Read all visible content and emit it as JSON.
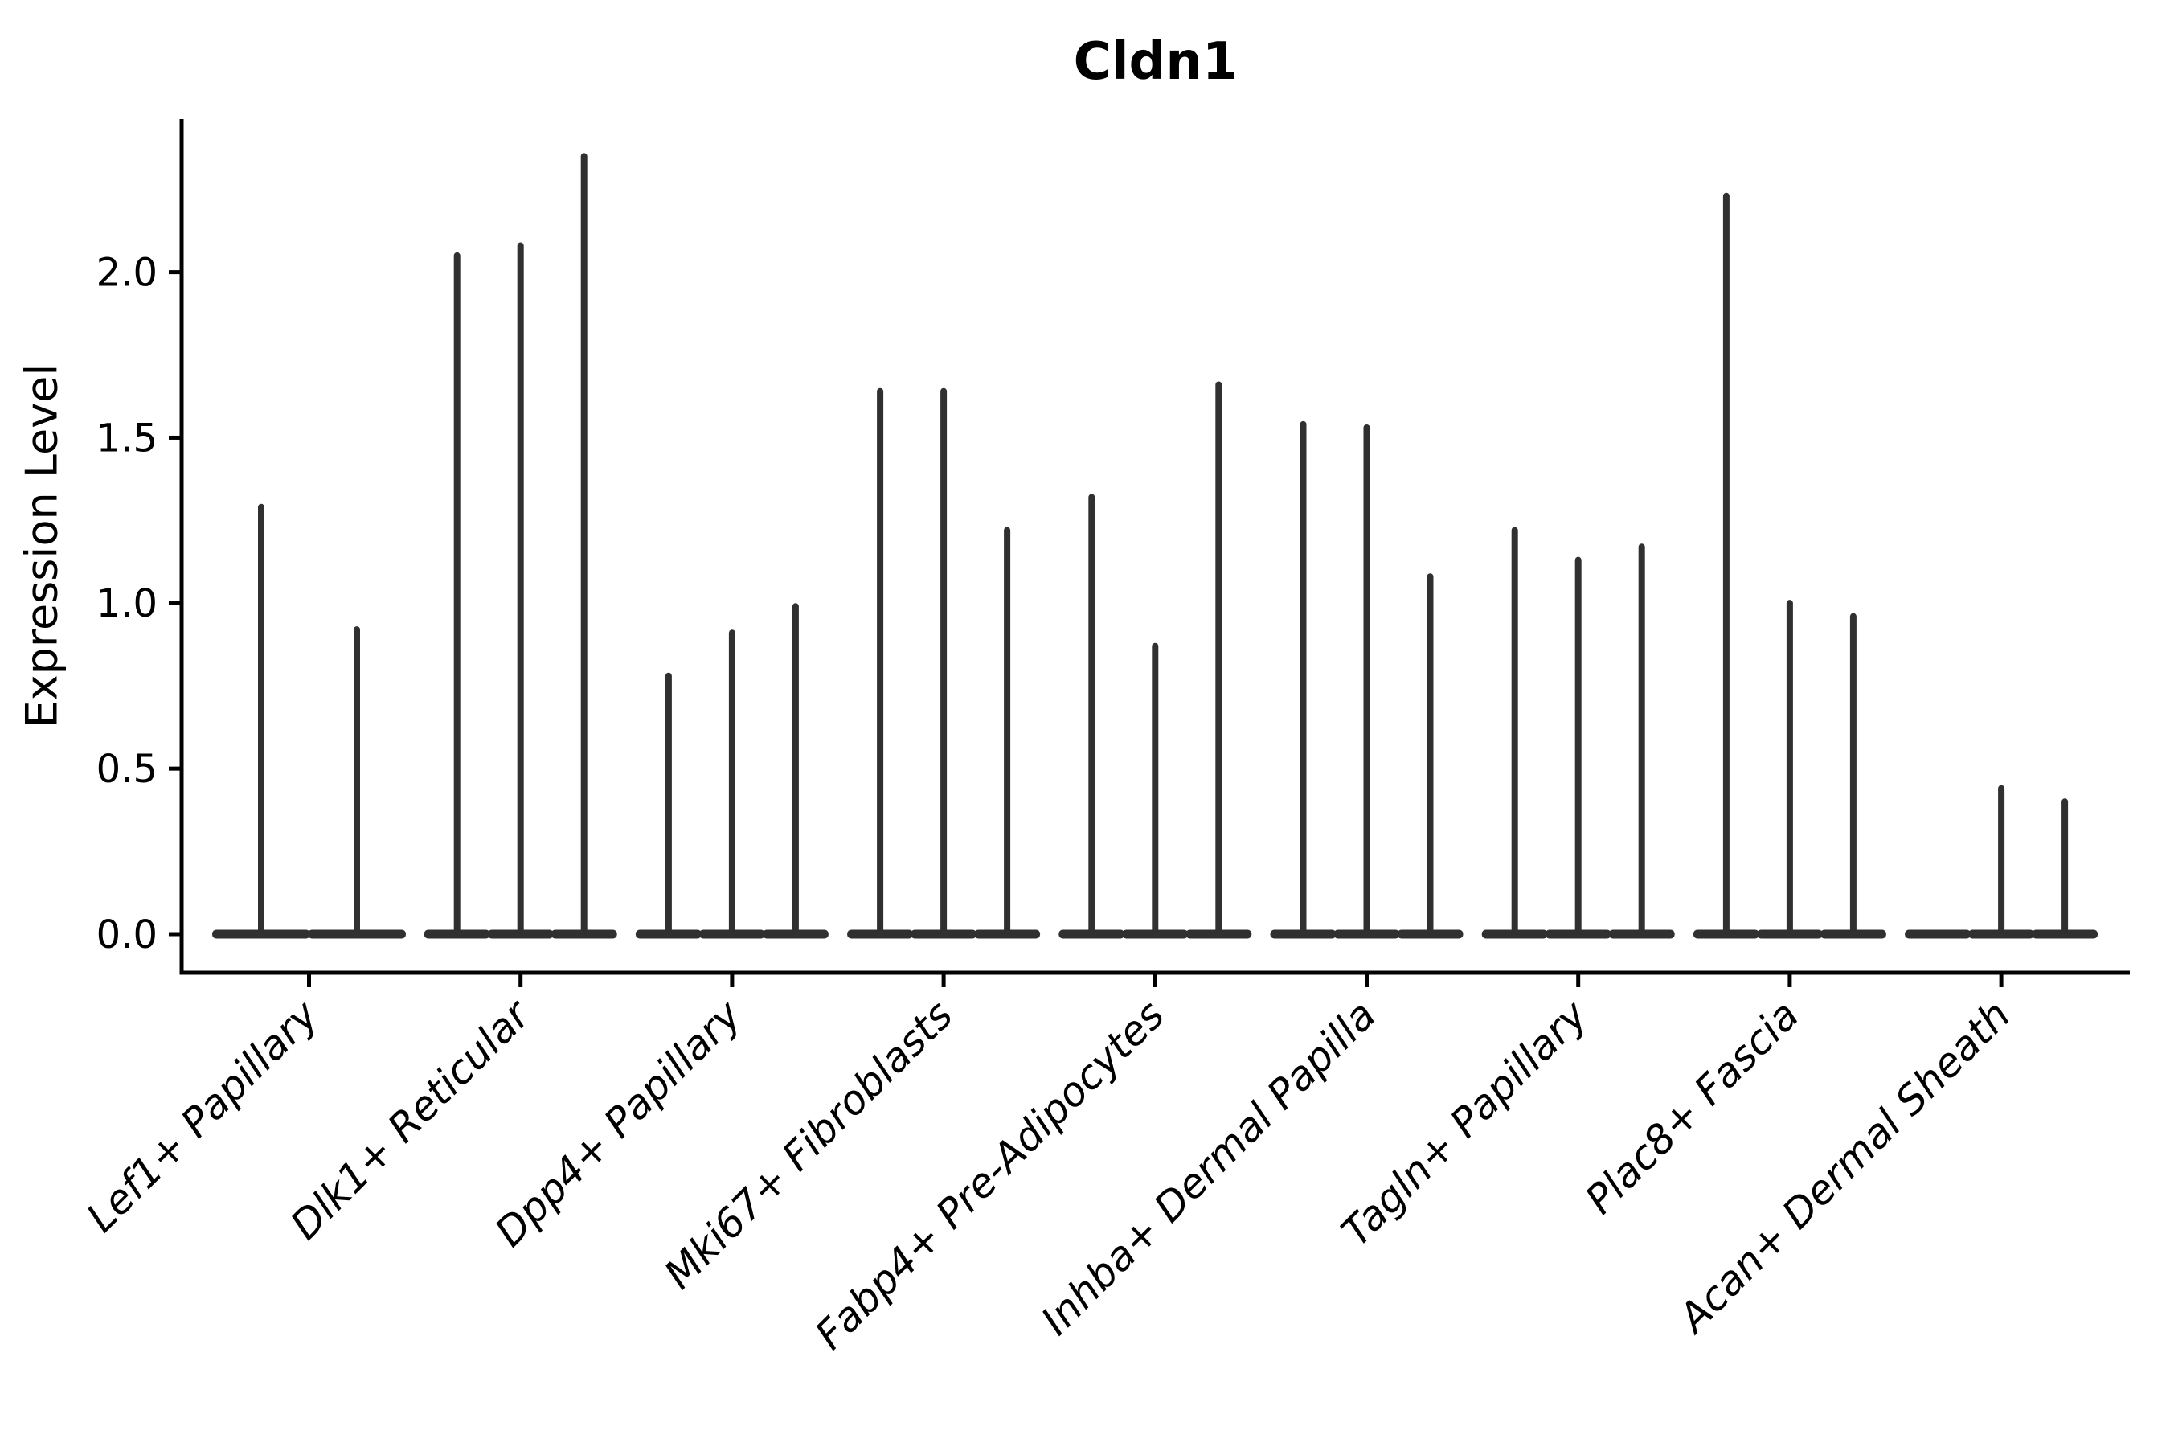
{
  "chart_data": {
    "type": "violin",
    "title": "Cldn1",
    "ylabel": "Expression Level",
    "xlabel": "",
    "y_tick_values": [
      0.0,
      0.5,
      1.0,
      1.5,
      2.0
    ],
    "y_tick_labels": [
      "0.0",
      "0.5",
      "1.0",
      "1.5",
      "2.0"
    ],
    "ylim": [
      -0.12,
      2.46
    ],
    "grid": false,
    "legend": false,
    "x_labels_rotation_deg": 45,
    "x_labels_italic": true,
    "groups": [
      {
        "category": "Lef1+ Papillary",
        "violin_max": [
          1.3,
          0.93
        ]
      },
      {
        "category": "Dlk1+ Reticular",
        "violin_max": [
          2.06,
          2.09,
          2.36
        ]
      },
      {
        "category": "Dpp4+ Papillary",
        "violin_max": [
          0.79,
          0.92,
          1.0
        ]
      },
      {
        "category": "Mki67+ Fibroblasts",
        "violin_max": [
          1.65,
          1.65,
          1.23
        ]
      },
      {
        "category": "Fabp4+ Pre-Adipocytes",
        "violin_max": [
          1.33,
          0.88,
          1.67
        ]
      },
      {
        "category": "Inhba+ Dermal Papilla",
        "violin_max": [
          1.55,
          1.54,
          1.09
        ]
      },
      {
        "category": "Tagln+ Papillary",
        "violin_max": [
          1.23,
          1.14,
          1.18
        ]
      },
      {
        "category": "Plac8+ Fascia",
        "violin_max": [
          2.24,
          1.01,
          0.97
        ]
      },
      {
        "category": "Acan+ Dermal Sheath",
        "violin_max": [
          0.0,
          0.45,
          0.41
        ]
      }
    ],
    "style": {
      "violin_color": "#303030",
      "axis_color": "#000000",
      "text_color": "#000000",
      "background": "#ffffff"
    }
  }
}
